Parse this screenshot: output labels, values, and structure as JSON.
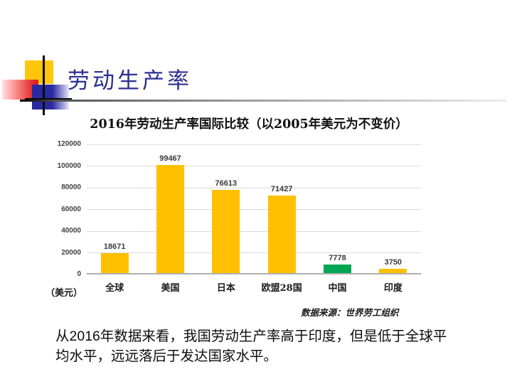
{
  "slide": {
    "title": "劳动生产率",
    "body_text": "从2016年数据来看，我国劳动生产率高于印度，但是低于全球平\n均水平，远远落后于发达国家水平。"
  },
  "chart_data": {
    "type": "bar",
    "title": "2016年劳动生产率国际比较（以2005年美元为不变价）",
    "categories": [
      "全球",
      "美国",
      "日本",
      "欧盟28国",
      "中国",
      "印度"
    ],
    "values": [
      18671,
      99467,
      76613,
      71427,
      7778,
      3750
    ],
    "bar_colors": [
      "#FFC000",
      "#FFC000",
      "#FFC000",
      "#FFC000",
      "#00A651",
      "#FFC000"
    ],
    "xlabel": "",
    "ylabel": "（美元）",
    "ylim": [
      0,
      120000
    ],
    "yticks": [
      0,
      20000,
      40000,
      60000,
      80000,
      100000,
      120000
    ],
    "grid": true,
    "legend": "none",
    "source": "数据来源：世界劳工组织"
  },
  "colors": {
    "accent_yellow": "#FFC000",
    "accent_green": "#00A651",
    "title_blue": "#2B2F90",
    "gridline": "#DCDCDC",
    "axis_line": "#B0B0B0",
    "label_gray": "#404040"
  }
}
